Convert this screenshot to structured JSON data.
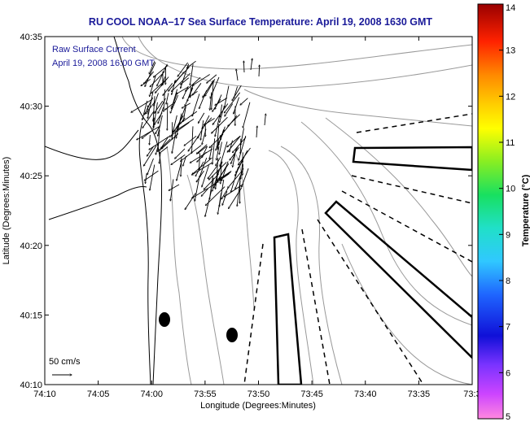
{
  "title": "RU COOL  NOAA–17  Sea Surface Temperature:  April 19, 2008 1630 GMT",
  "inset": {
    "line1": "Raw Surface Current",
    "line2": "April 19, 2008 16:00 GMT"
  },
  "scale_label": "50 cm/s",
  "colors": {
    "title": "#1a1a99",
    "land_line": "#000000",
    "bathymetry": "#999999",
    "glider_lines": "#000000"
  },
  "chart_data": {
    "type": "map",
    "xlabel": "Longitude (Degrees:Minutes)",
    "ylabel": "Latitude (Degrees:Minutes)",
    "x_ticks": [
      "74:10",
      "74:05",
      "74:00",
      "73:55",
      "73:50",
      "73:45",
      "73:40",
      "73:35",
      "73:3"
    ],
    "y_ticks": [
      "40:35",
      "40:30",
      "40:25",
      "40:20",
      "40:15",
      "40:10"
    ],
    "xlim_minutes_west": [
      10,
      30
    ],
    "ylim_minutes_north": [
      10,
      35
    ],
    "colorbar": {
      "label": "Temperature (°C)",
      "ticks": [
        "14",
        "13",
        "12",
        "11",
        "10",
        "9",
        "8",
        "7",
        "6",
        "5"
      ],
      "range": [
        5,
        14
      ]
    }
  }
}
